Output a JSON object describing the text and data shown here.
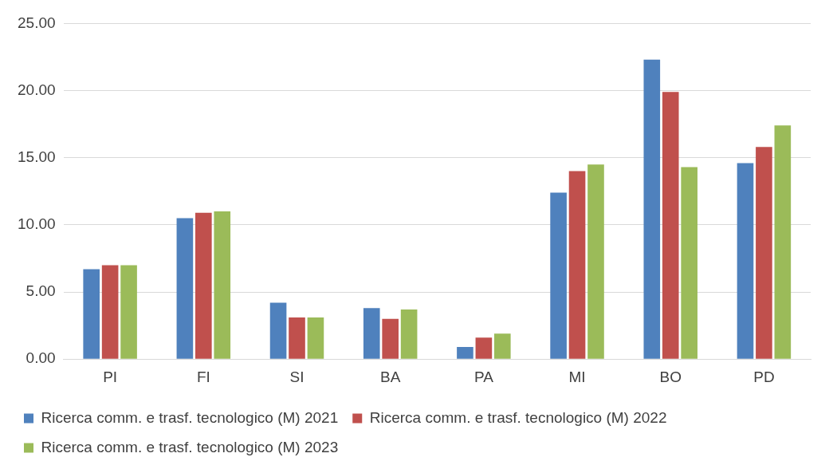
{
  "chart_data": {
    "type": "bar",
    "categories": [
      "PI",
      "FI",
      "SI",
      "BA",
      "PA",
      "MI",
      "BO",
      "PD"
    ],
    "series": [
      {
        "name": "Ricerca comm. e trasf. tecnologico (M) 2021",
        "color": "#4f81bd",
        "values": [
          6.7,
          10.5,
          4.2,
          3.8,
          0.9,
          12.4,
          22.3,
          14.6
        ]
      },
      {
        "name": "Ricerca comm. e trasf. tecnologico (M) 2022",
        "color": "#c0504d",
        "values": [
          7.0,
          10.9,
          3.1,
          3.0,
          1.6,
          14.0,
          19.9,
          15.8
        ]
      },
      {
        "name": "Ricerca comm. e trasf. tecnologico (M) 2023",
        "color": "#9bbb59",
        "values": [
          7.0,
          11.0,
          3.1,
          3.7,
          1.9,
          14.5,
          14.3,
          17.4
        ]
      }
    ],
    "ylim": [
      0,
      25
    ],
    "yticks": [
      {
        "value": 0,
        "label": "0.00"
      },
      {
        "value": 5,
        "label": "5.00"
      },
      {
        "value": 10,
        "label": "10.00"
      },
      {
        "value": 15,
        "label": "15.00"
      },
      {
        "value": 20,
        "label": "20.00"
      },
      {
        "value": 25,
        "label": "25.00"
      }
    ],
    "grid": "y",
    "legend": "bottom"
  }
}
